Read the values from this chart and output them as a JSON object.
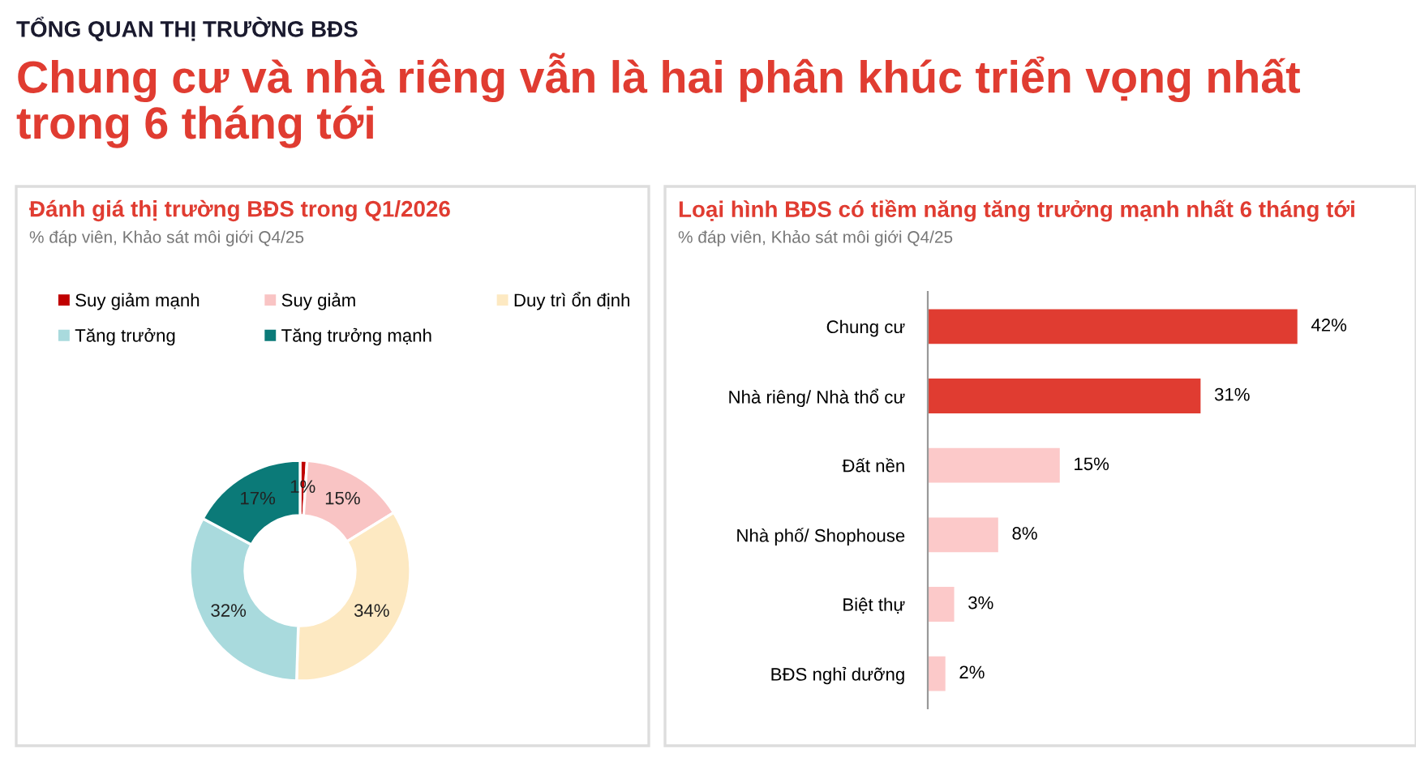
{
  "chart_data": [
    {
      "type": "donut",
      "title": "Đánh giá thị trường BĐS trong Q1/2026",
      "subtitle": "% đáp viên, Khảo sát môi giới Q4/25",
      "annotations": [
        "TỔNG QUAN THỊ TRƯỜNG BĐS",
        "Chung cư và nhà riêng vẫn là hai phân khúc triển vọng nhất trong 6 tháng tới"
      ],
      "categories": [
        "Suy giảm mạnh",
        "Suy giảm",
        "Duy trì ổn định",
        "Tăng trưởng",
        "Tăng trưởng mạnh"
      ],
      "values": [
        1,
        15,
        34,
        32,
        17
      ],
      "colors": [
        "#c00000",
        "#f9c4c4",
        "#fde9c2",
        "#a9dadd",
        "#0b7a78"
      ],
      "value_labels": [
        "1%",
        "15%",
        "34%",
        "32%",
        "17%"
      ],
      "legend": "top"
    },
    {
      "type": "bar",
      "orientation": "horizontal",
      "title": "Loại hình BĐS có tiềm năng tăng trưởng mạnh nhất 6 tháng tới",
      "subtitle": "% đáp viên, Khảo sát môi giới Q4/25",
      "categories": [
        "Chung cư",
        "Nhà riêng/ Nhà thổ cư",
        "Đất nền",
        "Nhà phố/ Shophouse",
        "Biệt thự",
        "BĐS nghỉ dưỡng"
      ],
      "values": [
        42,
        31,
        15,
        8,
        3,
        2
      ],
      "colors": [
        "#e03c31",
        "#e03c31",
        "#fcc9c9",
        "#fcc9c9",
        "#fcc9c9",
        "#fcc9c9"
      ],
      "value_labels": [
        "42%",
        "31%",
        "15%",
        "8%",
        "3%",
        "2%"
      ]
    }
  ]
}
